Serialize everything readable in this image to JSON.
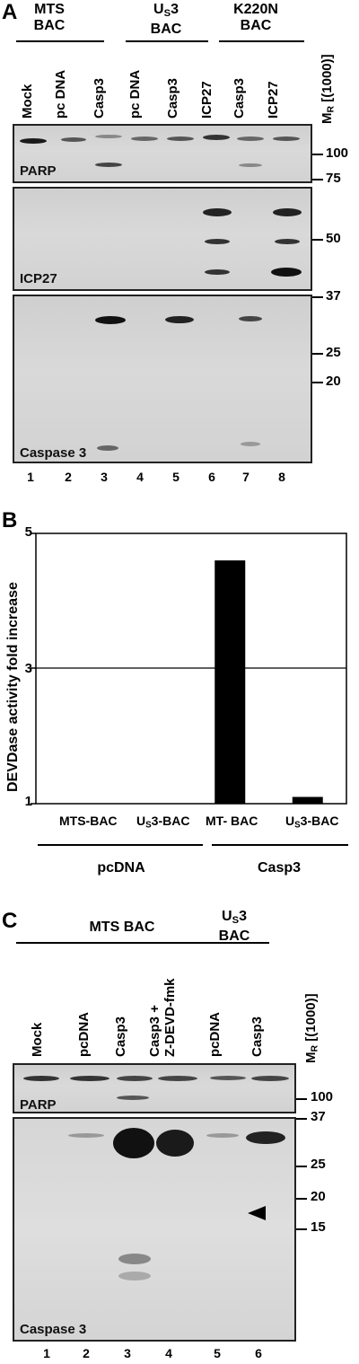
{
  "panelA": {
    "label": "A",
    "groups": [
      {
        "line1": "MTS",
        "line2": "BAC"
      },
      {
        "line1": "U",
        "sub": "S",
        "line1b": "3",
        "line2": "BAC"
      },
      {
        "line1": "K220N",
        "line2": "BAC"
      }
    ],
    "lanes": [
      "Mock",
      "pc DNA",
      "Casp3",
      "pc DNA",
      "Casp3",
      "ICP27",
      "Casp3",
      "ICP27"
    ],
    "mr_label": "M",
    "mr_sub": "R",
    "mr_unit": "[(1000)]",
    "blots": [
      "PARP",
      "ICP27",
      "Caspase 3"
    ],
    "parp_markers": [
      "100",
      "75"
    ],
    "icp27_markers": [
      "50"
    ],
    "casp_markers": [
      "37",
      "25",
      "20"
    ],
    "lane_numbers": [
      "1",
      "2",
      "3",
      "4",
      "5",
      "6",
      "7",
      "8"
    ]
  },
  "panelB": {
    "label": "B",
    "ylabel": "DEVDase activity fold increase",
    "yticks": [
      "1",
      "3",
      "5"
    ],
    "categories": [
      "MTS-BAC",
      "US3-BAC",
      "MT- BAC",
      "US3-BAC"
    ],
    "group_labels": [
      "pcDNA",
      "Casp3"
    ]
  },
  "chart_data": {
    "type": "bar",
    "categories": [
      "MTS-BAC",
      "US3-BAC",
      "MT- BAC",
      "US3-BAC"
    ],
    "values": [
      1.0,
      1.0,
      4.6,
      1.1
    ],
    "groups": [
      "pcDNA",
      "pcDNA",
      "Casp3",
      "Casp3"
    ],
    "ylabel": "DEVDase activity fold increase",
    "ylim": [
      1,
      5
    ],
    "yticks": [
      1,
      3,
      5
    ],
    "gridline_at": 3
  },
  "panelC": {
    "label": "C",
    "groups": [
      {
        "line1": "MTS BAC"
      },
      {
        "line1": "U",
        "sub": "S",
        "line1b": "3",
        "line2": "BAC"
      }
    ],
    "lanes": [
      "Mock",
      "pcDNA",
      "Casp3",
      "Casp3 +",
      "Z-DEVD-fmk",
      "pcDNA",
      "Casp3"
    ],
    "mr_label": "M",
    "mr_sub": "R",
    "mr_unit": "[(1000)]",
    "blots": [
      "PARP",
      "Caspase 3"
    ],
    "parp_markers": [
      "100"
    ],
    "casp_markers": [
      "37",
      "25",
      "20",
      "15"
    ],
    "lane_numbers": [
      "1",
      "2",
      "3",
      "4",
      "5",
      "6"
    ]
  },
  "colors": {
    "bar": "#000000",
    "blot_bg": "#d4d4d4",
    "band": "#1a1a1a"
  }
}
